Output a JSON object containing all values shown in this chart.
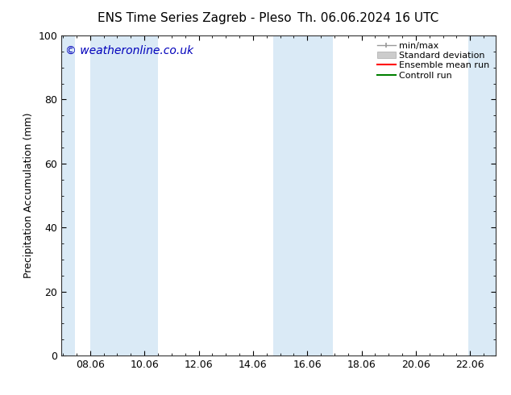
{
  "title_left": "ENS Time Series Zagreb - Pleso",
  "title_right": "Th. 06.06.2024 16 UTC",
  "ylabel": "Precipitation Accumulation (mm)",
  "ylim": [
    0,
    100
  ],
  "xlim": [
    7.0,
    23.0
  ],
  "xticks": [
    8.06,
    10.06,
    12.06,
    14.06,
    16.06,
    18.06,
    20.06,
    22.06
  ],
  "xtick_labels": [
    "08.06",
    "10.06",
    "12.06",
    "14.06",
    "16.06",
    "18.06",
    "20.06",
    "22.06"
  ],
  "yticks": [
    0,
    20,
    40,
    60,
    80,
    100
  ],
  "shaded_regions": [
    [
      7.0,
      7.5
    ],
    [
      8.06,
      9.5
    ],
    [
      9.5,
      10.56
    ],
    [
      14.8,
      15.4
    ],
    [
      15.4,
      17.0
    ],
    [
      22.0,
      23.0
    ]
  ],
  "band_color": "#daeaf6",
  "watermark_text": "© weatheronline.co.uk",
  "watermark_color": "#0000bb",
  "watermark_fontsize": 10,
  "bg_color": "#ffffff",
  "title_fontsize": 11,
  "label_fontsize": 9,
  "tick_fontsize": 9,
  "legend_fontsize": 8
}
